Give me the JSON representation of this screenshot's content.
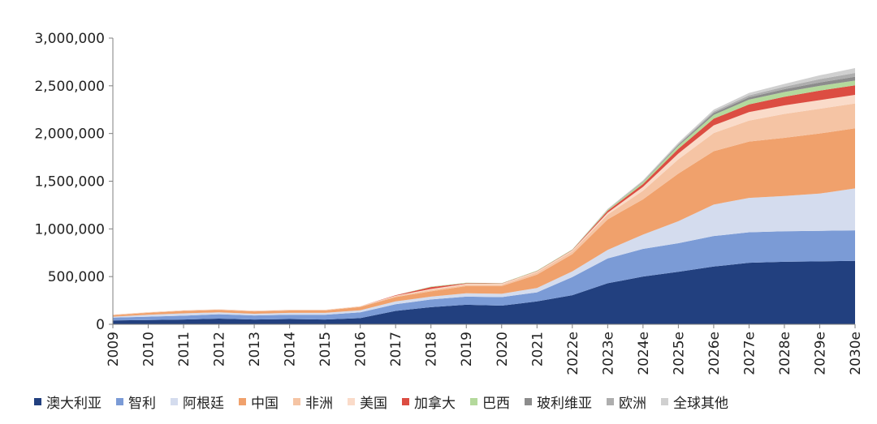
{
  "chart_data": {
    "type": "area",
    "stacked": true,
    "categories": [
      "2009",
      "2010",
      "2011",
      "2012",
      "2013",
      "2014",
      "2015",
      "2016",
      "2017",
      "2018",
      "2019",
      "2020",
      "2021",
      "2022e",
      "2023e",
      "2024e",
      "2025e",
      "2026e",
      "2027e",
      "2028e",
      "2029e",
      "2030e"
    ],
    "ylim": [
      0,
      3000000
    ],
    "yticks": [
      "0",
      "500,000",
      "1,000,000",
      "1,500,000",
      "2,000,000",
      "2,500,000",
      "3,000,000"
    ],
    "ytick_values": [
      0,
      500000,
      1000000,
      1500000,
      2000000,
      2500000,
      3000000
    ],
    "grid": false,
    "legend_position": "bottom",
    "series": [
      {
        "name": "澳大利亚",
        "color": "#22407f",
        "values": [
          40000,
          45000,
          50000,
          60000,
          50000,
          55000,
          50000,
          65000,
          140000,
          180000,
          205000,
          195000,
          240000,
          305000,
          430000,
          500000,
          550000,
          605000,
          645000,
          655000,
          660000,
          665000
        ]
      },
      {
        "name": "智利",
        "color": "#7b9bd6",
        "values": [
          30000,
          35000,
          40000,
          45000,
          42000,
          45000,
          50000,
          60000,
          70000,
          80000,
          85000,
          90000,
          95000,
          190000,
          260000,
          290000,
          300000,
          320000,
          320000,
          320000,
          320000,
          320000
        ]
      },
      {
        "name": "阿根廷",
        "color": "#d4dcee",
        "values": [
          10000,
          20000,
          25000,
          20000,
          18000,
          20000,
          20000,
          22000,
          30000,
          30000,
          35000,
          35000,
          45000,
          60000,
          90000,
          150000,
          230000,
          330000,
          360000,
          370000,
          390000,
          440000
        ]
      },
      {
        "name": "中国",
        "color": "#f0a16c",
        "values": [
          15000,
          20000,
          25000,
          25000,
          25000,
          25000,
          25000,
          35000,
          45000,
          55000,
          75000,
          80000,
          140000,
          180000,
          320000,
          370000,
          500000,
          560000,
          590000,
          610000,
          630000,
          630000
        ]
      },
      {
        "name": "非洲",
        "color": "#f5c4a4",
        "values": [
          5000,
          5000,
          5000,
          5000,
          5000,
          5000,
          5000,
          5000,
          10000,
          15000,
          15000,
          15000,
          25000,
          30000,
          50000,
          90000,
          150000,
          190000,
          220000,
          250000,
          260000,
          260000
        ]
      },
      {
        "name": "美国",
        "color": "#fadbc9",
        "values": [
          3000,
          3000,
          3000,
          3000,
          3000,
          3000,
          3000,
          3000,
          5000,
          10000,
          10000,
          10000,
          10000,
          10000,
          20000,
          40000,
          60000,
          80000,
          90000,
          90000,
          90000,
          90000
        ]
      },
      {
        "name": "加拿大",
        "color": "#dc4d42",
        "values": [
          0,
          0,
          0,
          0,
          0,
          0,
          0,
          0,
          5000,
          20000,
          5000,
          3000,
          3000,
          5000,
          20000,
          30000,
          50000,
          70000,
          80000,
          90000,
          100000,
          100000
        ]
      },
      {
        "name": "巴西",
        "color": "#b4d99c",
        "values": [
          0,
          0,
          0,
          0,
          0,
          0,
          0,
          0,
          0,
          5000,
          5000,
          3000,
          5000,
          5000,
          10000,
          20000,
          30000,
          40000,
          50000,
          50000,
          50000,
          50000
        ]
      },
      {
        "name": "玻利维亚",
        "color": "#8c8c8c",
        "values": [
          0,
          0,
          0,
          0,
          0,
          0,
          0,
          0,
          0,
          0,
          0,
          0,
          0,
          0,
          0,
          5000,
          10000,
          20000,
          25000,
          30000,
          35000,
          40000
        ]
      },
      {
        "name": "欧洲",
        "color": "#aeaeae",
        "values": [
          0,
          0,
          0,
          0,
          0,
          0,
          0,
          0,
          0,
          0,
          0,
          0,
          0,
          0,
          5000,
          5000,
          10000,
          15000,
          20000,
          25000,
          35000,
          40000
        ]
      },
      {
        "name": "全球其他",
        "color": "#d0d0d0",
        "values": [
          0,
          0,
          0,
          0,
          0,
          0,
          0,
          0,
          0,
          0,
          0,
          0,
          0,
          0,
          5000,
          10000,
          15000,
          20000,
          25000,
          30000,
          40000,
          50000
        ]
      }
    ]
  }
}
